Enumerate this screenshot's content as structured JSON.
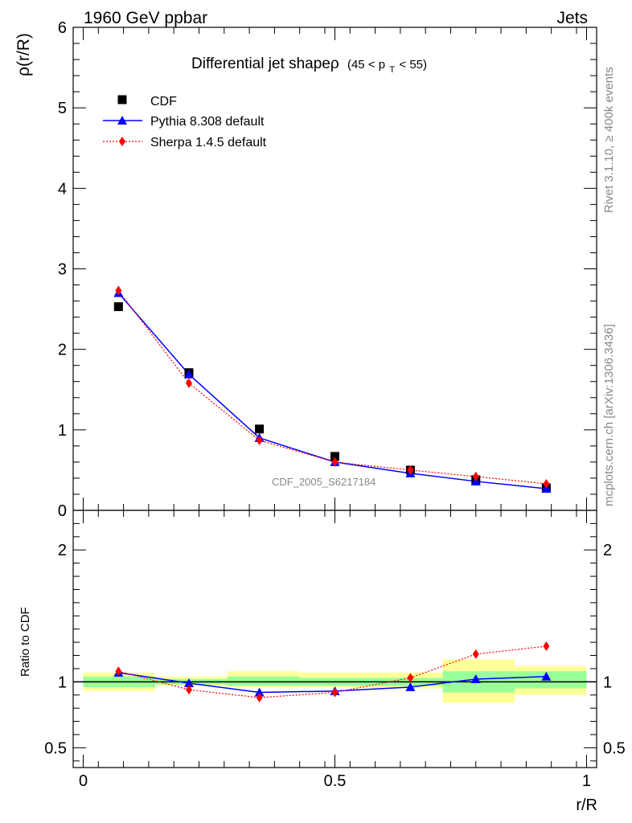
{
  "header": {
    "left": "1960 GeV ppbar",
    "right": "Jets"
  },
  "side_labels": {
    "rivet": "Rivet 3.1.10, ≥ 400k events",
    "mcplots": "mcplots.cern.ch [arXiv:1306.3436]"
  },
  "watermark": "CDF_2005_S6217184",
  "colors": {
    "cdf": "#000000",
    "pythia": "#0000ff",
    "sherpa": "#ff0000",
    "band_inner": "#99ff99",
    "band_outer": "#ffff99"
  },
  "chart_data": [
    {
      "type": "scatter",
      "title": "Differential jet shapeρ",
      "title_range": {
        "open": "(45 < p",
        "sub": "T",
        "close": " < 55)"
      },
      "ylabel": "ρ(r/R)",
      "ylim": [
        0,
        6
      ],
      "y_ticks": [
        "0",
        "1",
        "2",
        "3",
        "4",
        "5",
        "6"
      ],
      "legend_position": "top-left",
      "x": [
        0.07,
        0.21,
        0.35,
        0.5,
        0.65,
        0.78,
        0.92
      ],
      "series": [
        {
          "name": "CDF",
          "marker": "square",
          "values": [
            2.53,
            1.71,
            1.01,
            0.67,
            0.5,
            0.38,
            0.28
          ]
        },
        {
          "name": "Pythia 8.308 default",
          "marker": "triangle",
          "values": [
            2.7,
            1.69,
            0.9,
            0.6,
            0.46,
            0.36,
            0.27
          ]
        },
        {
          "name": "Sherpa 1.4.5 default",
          "marker": "diamond",
          "values": [
            2.73,
            1.58,
            0.87,
            0.6,
            0.5,
            0.42,
            0.33
          ]
        }
      ]
    },
    {
      "type": "line",
      "ylabel": "Ratio to CDF",
      "xlabel": "r/R",
      "ylim": [
        0.35,
        2.3
      ],
      "y_ticks": [
        "0.5",
        "1",
        "2"
      ],
      "xlim": [
        -0.02,
        1.02
      ],
      "x_ticks": [
        "0",
        "0.5",
        "1"
      ],
      "bands": [
        {
          "x": [
            0.0,
            0.143
          ],
          "inner": [
            0.96,
            1.04
          ],
          "outer": [
            0.93,
            1.07
          ]
        },
        {
          "x": [
            0.143,
            0.286
          ],
          "inner": [
            0.98,
            1.02
          ],
          "outer": [
            0.97,
            1.04
          ]
        },
        {
          "x": [
            0.286,
            0.429
          ],
          "inner": [
            0.97,
            1.04
          ],
          "outer": [
            0.96,
            1.08
          ]
        },
        {
          "x": [
            0.429,
            0.571
          ],
          "inner": [
            0.97,
            1.03
          ],
          "outer": [
            0.96,
            1.07
          ]
        },
        {
          "x": [
            0.571,
            0.714
          ],
          "inner": [
            0.97,
            1.03
          ],
          "outer": [
            0.95,
            1.07
          ]
        },
        {
          "x": [
            0.714,
            0.857
          ],
          "inner": [
            0.92,
            1.08
          ],
          "outer": [
            0.84,
            1.17
          ]
        },
        {
          "x": [
            0.857,
            1.0
          ],
          "inner": [
            0.95,
            1.08
          ],
          "outer": [
            0.9,
            1.12
          ]
        }
      ],
      "x": [
        0.07,
        0.21,
        0.35,
        0.5,
        0.65,
        0.78,
        0.92
      ],
      "series": [
        {
          "name": "Pythia 8.308 default",
          "values": [
            1.07,
            0.99,
            0.92,
            0.93,
            0.96,
            1.02,
            1.04
          ]
        },
        {
          "name": "Sherpa 1.4.5 default",
          "values": [
            1.08,
            0.94,
            0.88,
            0.92,
            1.03,
            1.21,
            1.27
          ]
        }
      ]
    }
  ]
}
